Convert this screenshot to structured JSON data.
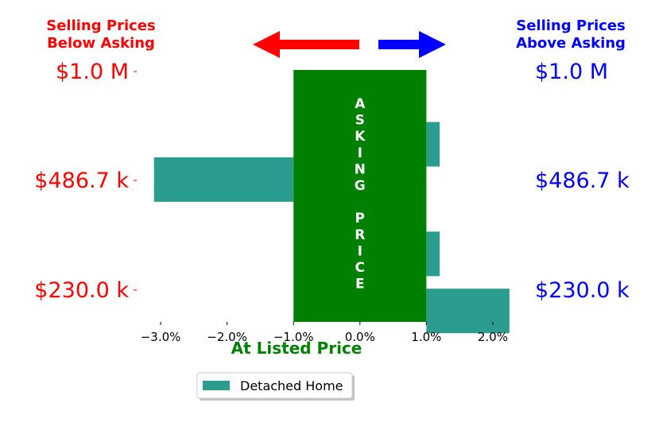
{
  "chart_data": {
    "type": "bar",
    "orientation": "horizontal",
    "title": "",
    "xlabel": "At Listed Price",
    "ylabel": "",
    "xlim": [
      -3.3,
      2.3
    ],
    "xticks": [
      -3.0,
      -2.0,
      -1.0,
      0.0,
      1.0,
      2.0
    ],
    "xtick_labels": [
      "−3.0%",
      "−2.0%",
      "−1.0%",
      "0.0%",
      "1.0%",
      "2.0%"
    ],
    "ylim": [
      0,
      1
    ],
    "y_tick_labels_left": [
      "$1.0 M",
      "$486.7 k",
      "$230.0 k"
    ],
    "y_tick_labels_right": [
      "$1.0 M",
      "$486.7 k",
      "$230.0 k"
    ],
    "left_header": [
      "Selling Prices",
      "Below Asking"
    ],
    "right_header": [
      "Selling Prices",
      "Above Asking"
    ],
    "asking_band": {
      "x_range": [
        -1.0,
        1.0
      ],
      "text_lines": [
        "A",
        "S",
        "K",
        "I",
        "N",
        "G",
        "",
        "P",
        "R",
        "I",
        "C",
        "E"
      ]
    },
    "series": [
      {
        "name": "Detached Home",
        "values": [
          {
            "base": 1.0,
            "value": 0.2,
            "y_center": 0.705
          },
          {
            "base": -1.0,
            "value": -2.1,
            "y_center": 0.565
          },
          {
            "base": 1.0,
            "value": 0.2,
            "y_center": 0.27
          },
          {
            "base": 1.0,
            "value": 1.25,
            "y_center": 0.0435
          }
        ]
      }
    ],
    "legend": {
      "placement": "lower-center",
      "entries": [
        "Detached Home"
      ]
    },
    "grid": false,
    "colors": {
      "bar": "#2a9d8f",
      "band": "#008000",
      "below": "#ff0000",
      "above": "#0000ff",
      "xlabel": "#008000"
    }
  }
}
